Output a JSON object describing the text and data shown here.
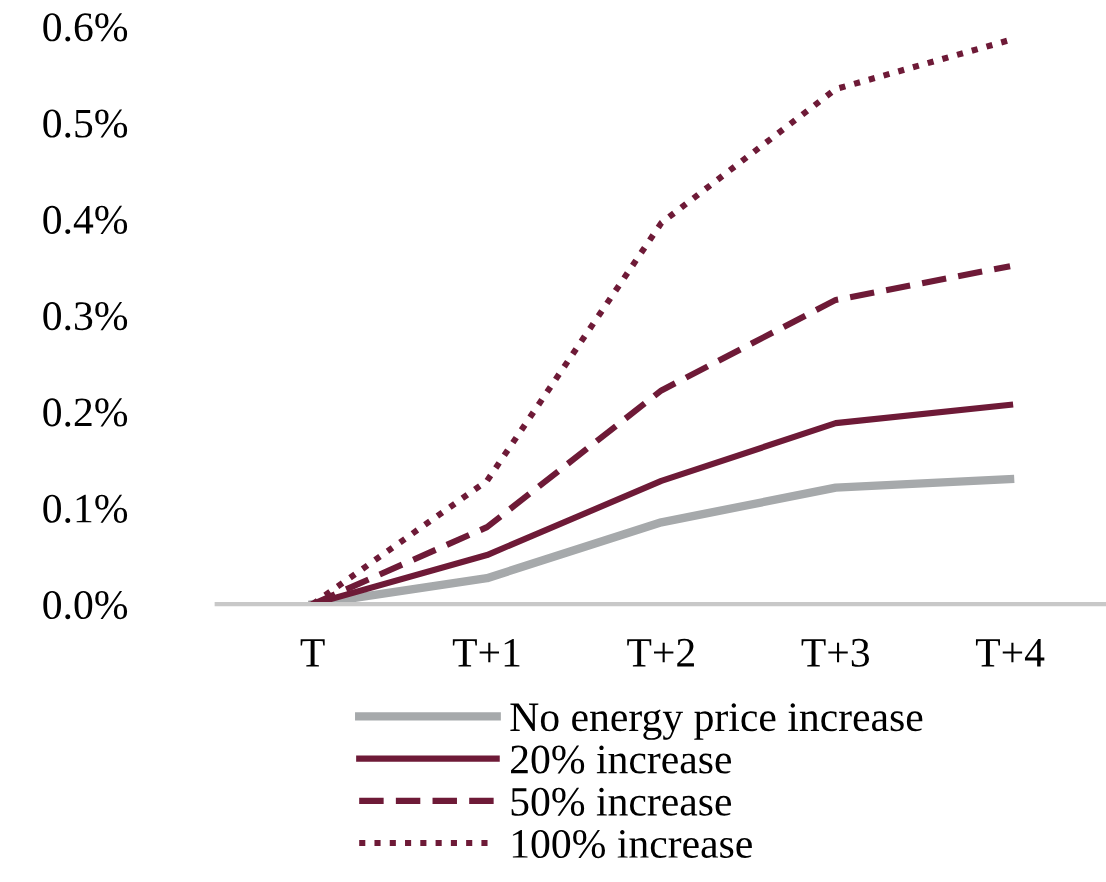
{
  "chart_data": {
    "type": "line",
    "categories": [
      "T",
      "T+1",
      "T+2",
      "T+3",
      "T+4"
    ],
    "series": [
      {
        "name": "No energy price increase",
        "color": "#a6a9ab",
        "values": [
          0,
          0.027,
          0.085,
          0.121,
          0.13
        ]
      },
      {
        "name": "20% increase",
        "color": "#6e1a37",
        "values": [
          0,
          0.051,
          0.128,
          0.188,
          0.207
        ]
      },
      {
        "name": "50% increase",
        "color": "#6e1a37",
        "line_style": "dashed",
        "values": [
          0,
          0.08,
          0.222,
          0.316,
          0.351
        ]
      },
      {
        "name": "100% increase",
        "color": "#6e1a37",
        "line_style": "dotted",
        "values": [
          0,
          0.128,
          0.396,
          0.535,
          0.586
        ]
      }
    ],
    "ylim": [
      0,
      0.6
    ],
    "yticks": [
      {
        "value": 0,
        "label": "0.0%"
      },
      {
        "value": 0.1,
        "label": "0.1%"
      },
      {
        "value": 0.2,
        "label": "0.2%"
      },
      {
        "value": 0.3,
        "label": "0.3%"
      },
      {
        "value": 0.4,
        "label": "0.4%"
      },
      {
        "value": 0.5,
        "label": "0.5%"
      },
      {
        "value": 0.6,
        "label": "0.6%"
      }
    ],
    "grid": false,
    "legend": "bottom",
    "marker": "none"
  }
}
